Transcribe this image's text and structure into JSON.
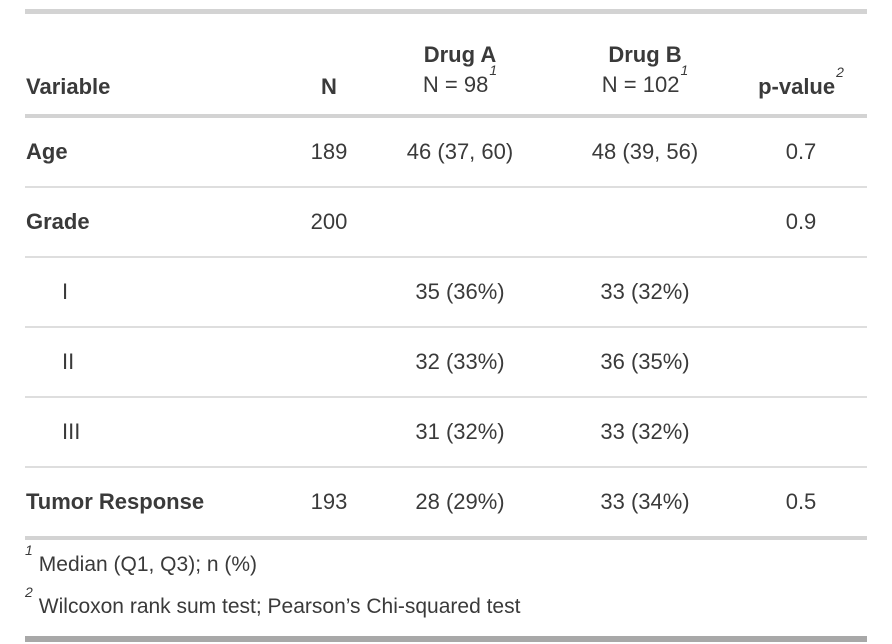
{
  "chart_data": {
    "type": "table",
    "header": {
      "variable": "Variable",
      "n": "N",
      "drug_a_line1": "Drug A",
      "drug_a_line2": "N = 98",
      "drug_a_footnote_mark": "1",
      "drug_b_line1": "Drug B",
      "drug_b_line2": "N = 102",
      "drug_b_footnote_mark": "1",
      "p_value": "p-value",
      "p_value_footnote_mark": "2"
    },
    "rows": [
      {
        "label": "Age",
        "level": false,
        "n": "189",
        "drug_a": "46 (37, 60)",
        "drug_b": "48 (39, 56)",
        "p_value": "0.7"
      },
      {
        "label": "Grade",
        "level": false,
        "n": "200",
        "drug_a": "",
        "drug_b": "",
        "p_value": "0.9"
      },
      {
        "label": "I",
        "level": true,
        "n": "",
        "drug_a": "35 (36%)",
        "drug_b": "33 (32%)",
        "p_value": ""
      },
      {
        "label": "II",
        "level": true,
        "n": "",
        "drug_a": "32 (33%)",
        "drug_b": "36 (35%)",
        "p_value": ""
      },
      {
        "label": "III",
        "level": true,
        "n": "",
        "drug_a": "31 (32%)",
        "drug_b": "33 (32%)",
        "p_value": ""
      },
      {
        "label": "Tumor Response",
        "level": false,
        "n": "193",
        "drug_a": "28 (29%)",
        "drug_b": "33 (34%)",
        "p_value": "0.5"
      }
    ],
    "footnotes": [
      {
        "mark": "1",
        "text": "Median (Q1, Q3); n (%)"
      },
      {
        "mark": "2",
        "text": "Wilcoxon rank sum test; Pearson’s Chi-squared test"
      }
    ],
    "layout_hints": {
      "column_alignments": [
        "left",
        "center",
        "center",
        "center",
        "center"
      ],
      "bold_variable_labels": true
    }
  },
  "colors": {
    "text": "#3a3a3a",
    "border_light": "#D3D3D3",
    "border_row_separator": "#DEDEDE",
    "border_bottom_dark": "#A8A8A8",
    "background": "#FFFFFF"
  }
}
